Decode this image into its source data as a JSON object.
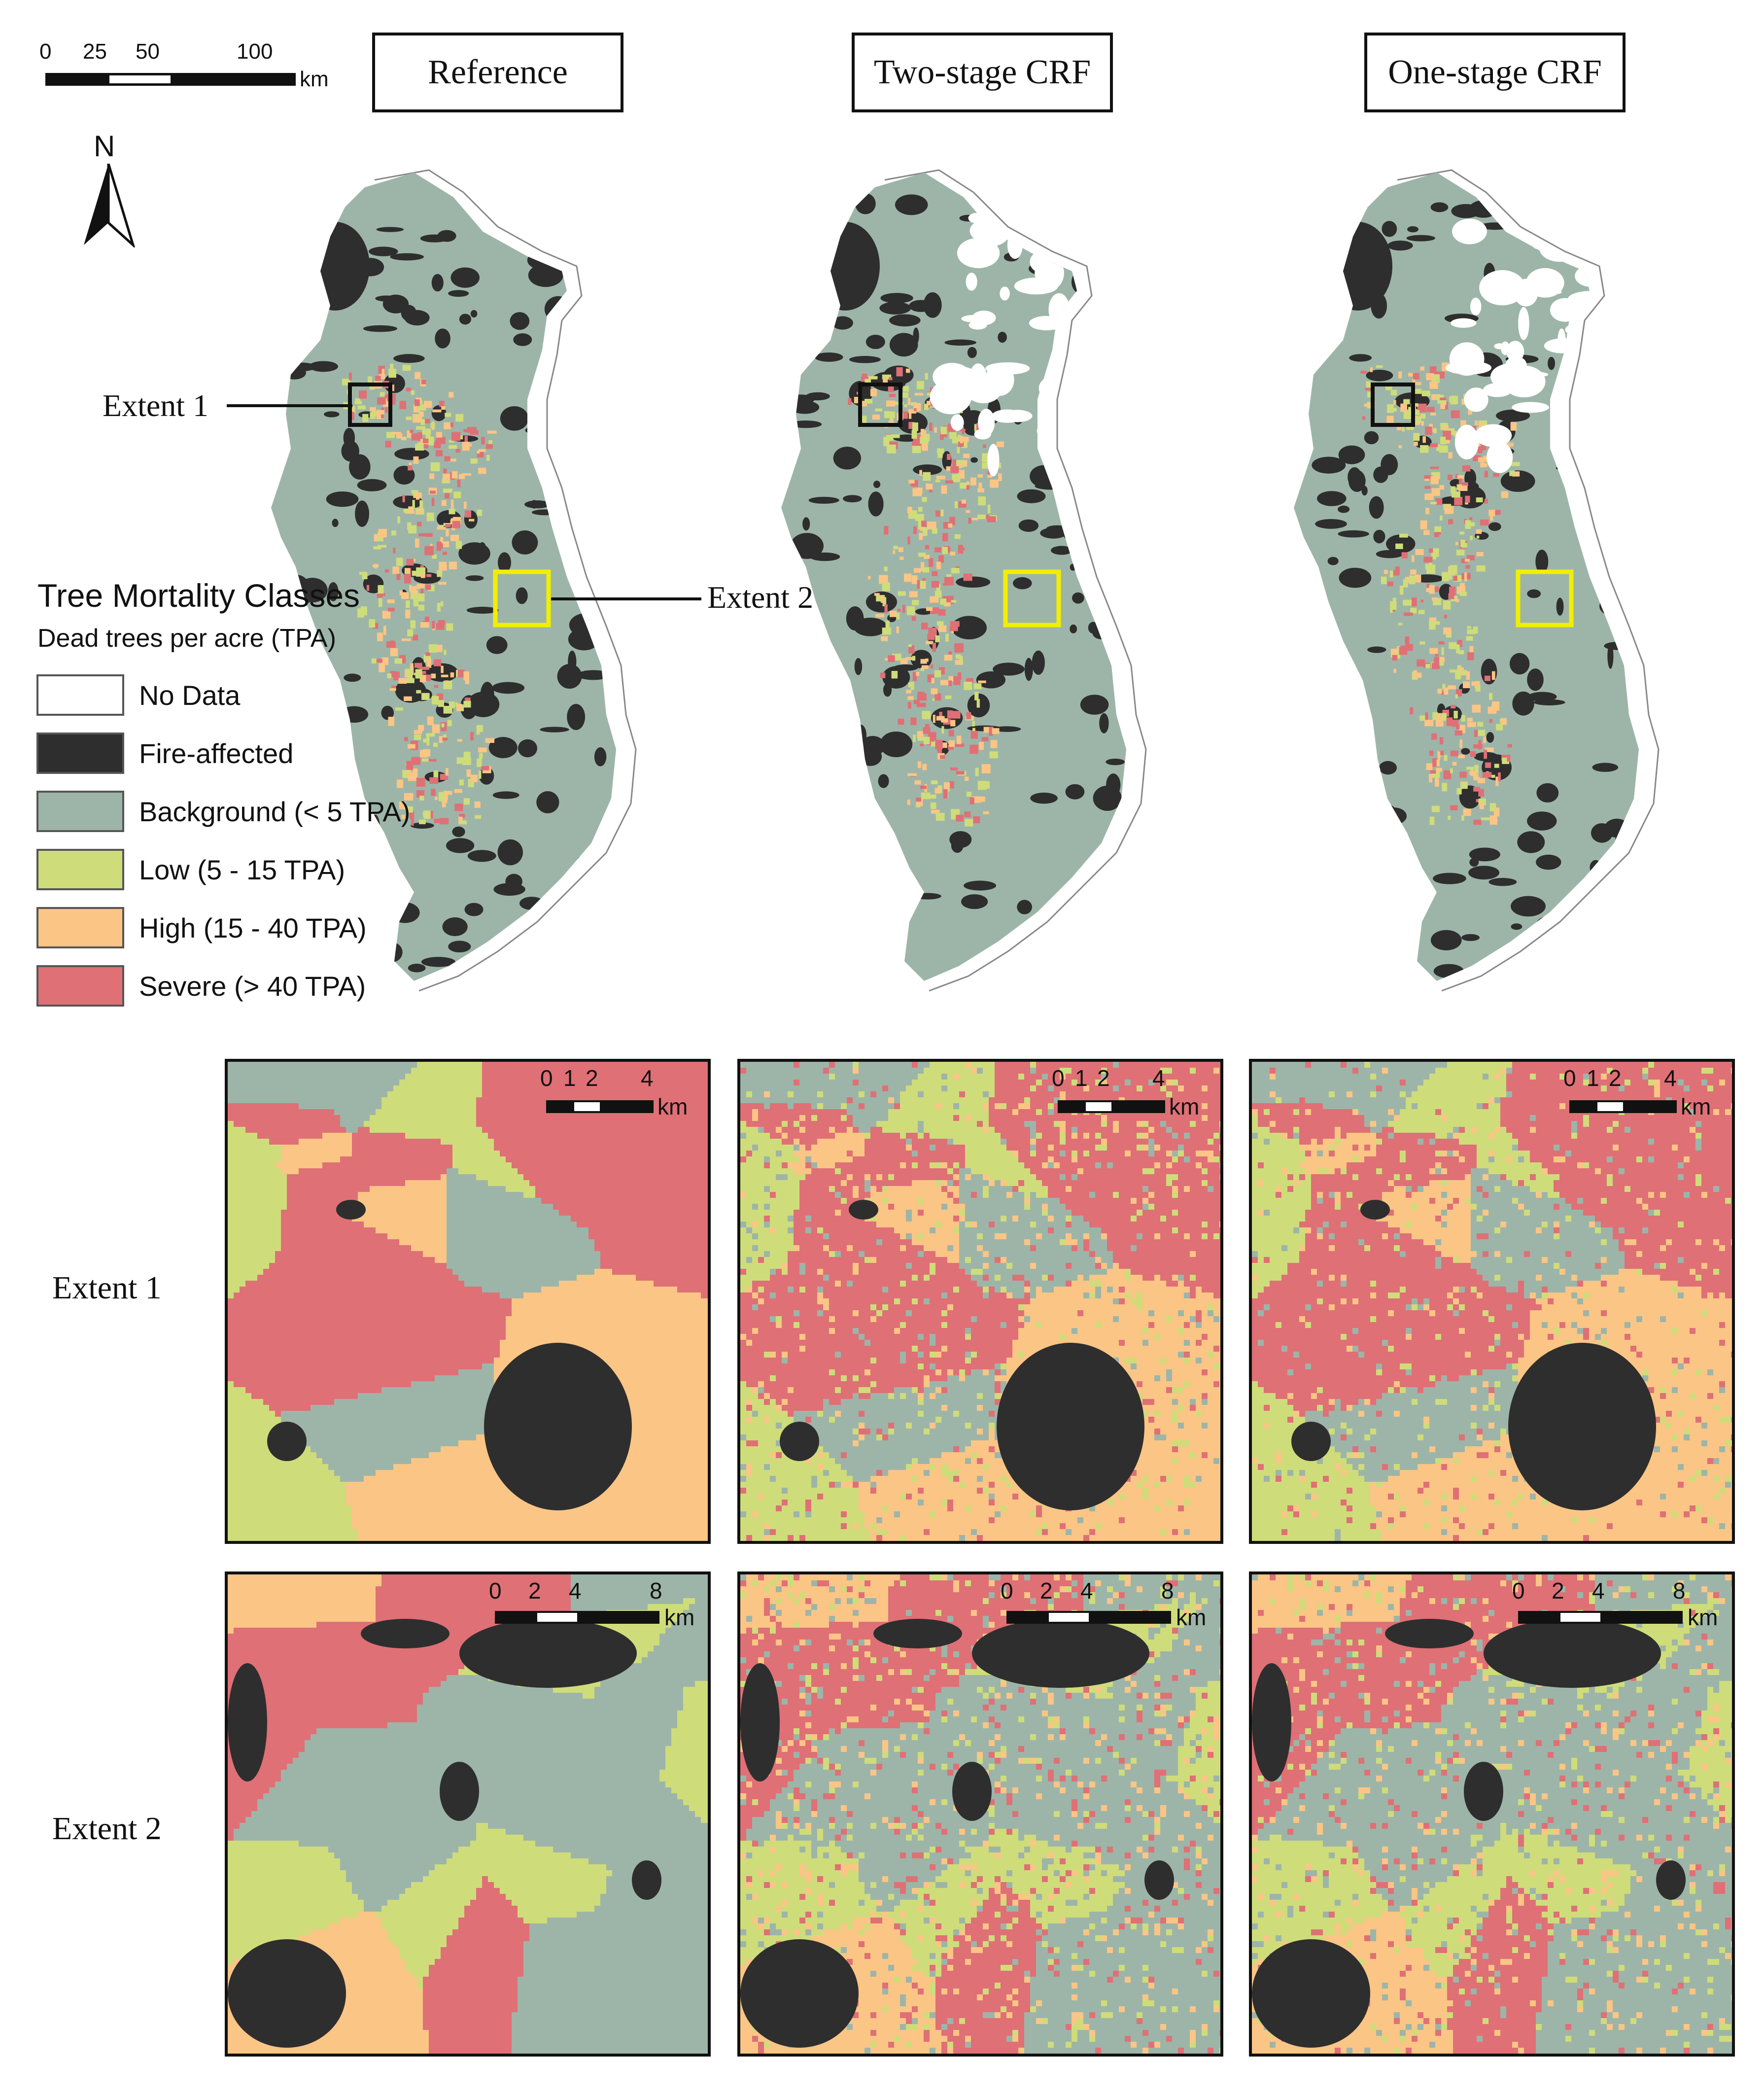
{
  "scale_bar": {
    "ticks": [
      "0",
      "25",
      "50",
      "100"
    ],
    "unit": "km"
  },
  "north_arrow": {
    "label": "N",
    "icon": "north-arrow-icon"
  },
  "panel_titles": [
    "Reference",
    "Two-stage CRF",
    "One-stage CRF"
  ],
  "overview_labels": {
    "extent1": "Extent 1",
    "extent2": "Extent 2"
  },
  "legend": {
    "title": "Tree Mortality Classes",
    "subtitle": "Dead trees per acre (TPA)",
    "items": [
      {
        "label": "No Data",
        "color": "#ffffff"
      },
      {
        "label": "Fire-affected",
        "color": "#2e2e2e"
      },
      {
        "label": "Background (< 5 TPA)",
        "color": "#9db5a8"
      },
      {
        "label": "Low (5 - 15 TPA)",
        "color": "#cfdc7a"
      },
      {
        "label": "High (15 - 40 TPA)",
        "color": "#fbc585"
      },
      {
        "label": "Severe (> 40 TPA)",
        "color": "#df7076"
      }
    ]
  },
  "zoom_rows": [
    {
      "label": "Extent 1",
      "scale_ticks": [
        "0",
        "1",
        "2",
        "4"
      ],
      "unit": "km"
    },
    {
      "label": "Extent 2",
      "scale_ticks": [
        "0",
        "2",
        "4",
        "8"
      ],
      "unit": "km"
    }
  ],
  "colors": {
    "background": "#9db5a8",
    "fire": "#2e2e2e",
    "low": "#cfdc7a",
    "high": "#fbc585",
    "severe": "#df7076",
    "extent1_box": "#111111",
    "extent2_box": "#f2ee00"
  }
}
